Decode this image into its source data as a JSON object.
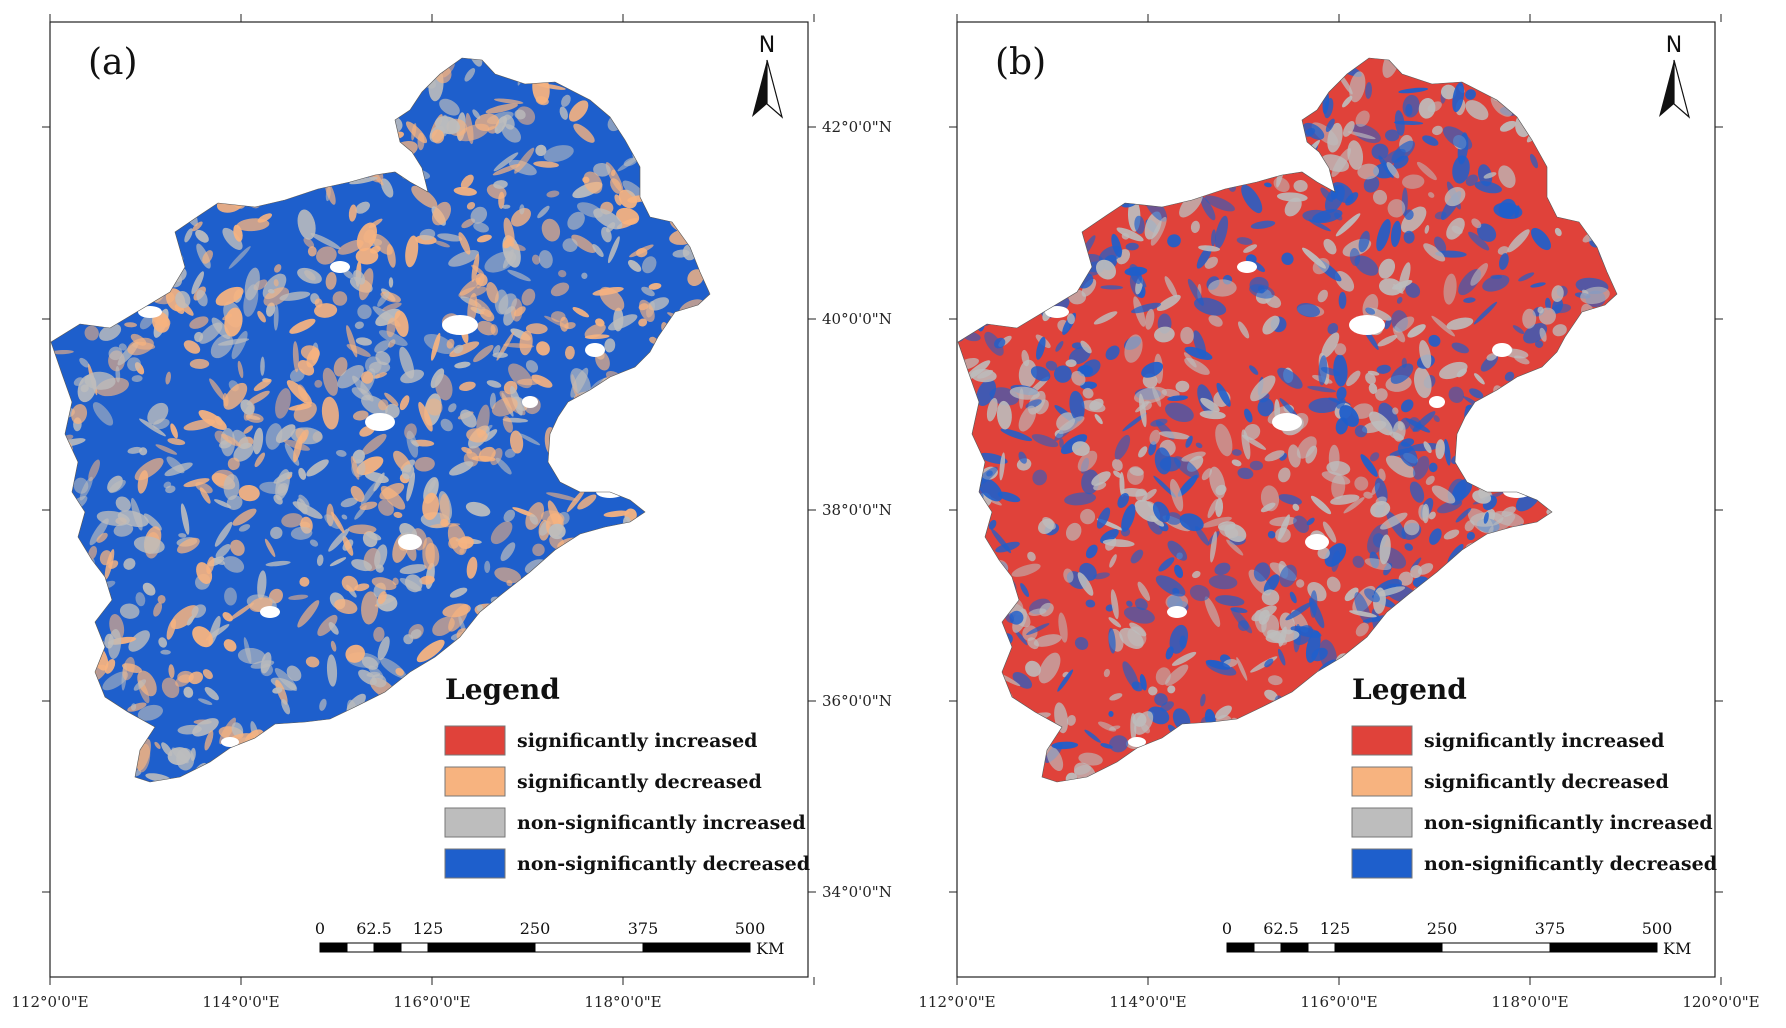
{
  "figure": {
    "panels": [
      {
        "label": "(a)",
        "dominant": "#1e5fcc",
        "mix": [
          "#bdbdbd",
          "#f7b37f"
        ],
        "lat_labels": [
          "42°0'0\"N",
          "40°0'0\"N",
          "38°0'0\"N",
          "36°0'0\"N",
          "34°0'0\"N"
        ],
        "lon_labels": [
          "112°0'0\"E",
          "114°0'0\"E",
          "116°0'0\"E",
          "118°0'0\"E"
        ]
      },
      {
        "label": "(b)",
        "dominant": "#e0423a",
        "mix": [
          "#bdbdbd",
          "#1e5fcc"
        ],
        "lat_labels": [],
        "lon_labels": [
          "112°0'0\"E",
          "114°0'0\"E",
          "116°0'0\"E",
          "118°0'0\"E",
          "120°0'0\"E"
        ]
      }
    ],
    "north_letter": "N",
    "legend": {
      "title": "Legend",
      "items": [
        {
          "label": "significantly increased",
          "color": "#e0423a"
        },
        {
          "label": "significantly decreased",
          "color": "#f7b37f"
        },
        {
          "label": "non-significantly increased",
          "color": "#bdbdbd"
        },
        {
          "label": "non-significantly decreased",
          "color": "#1e5fcc"
        }
      ]
    },
    "scale_bar": {
      "labels": [
        "0",
        "62.5",
        "125",
        "250",
        "375",
        "500"
      ],
      "unit": "KM"
    }
  }
}
